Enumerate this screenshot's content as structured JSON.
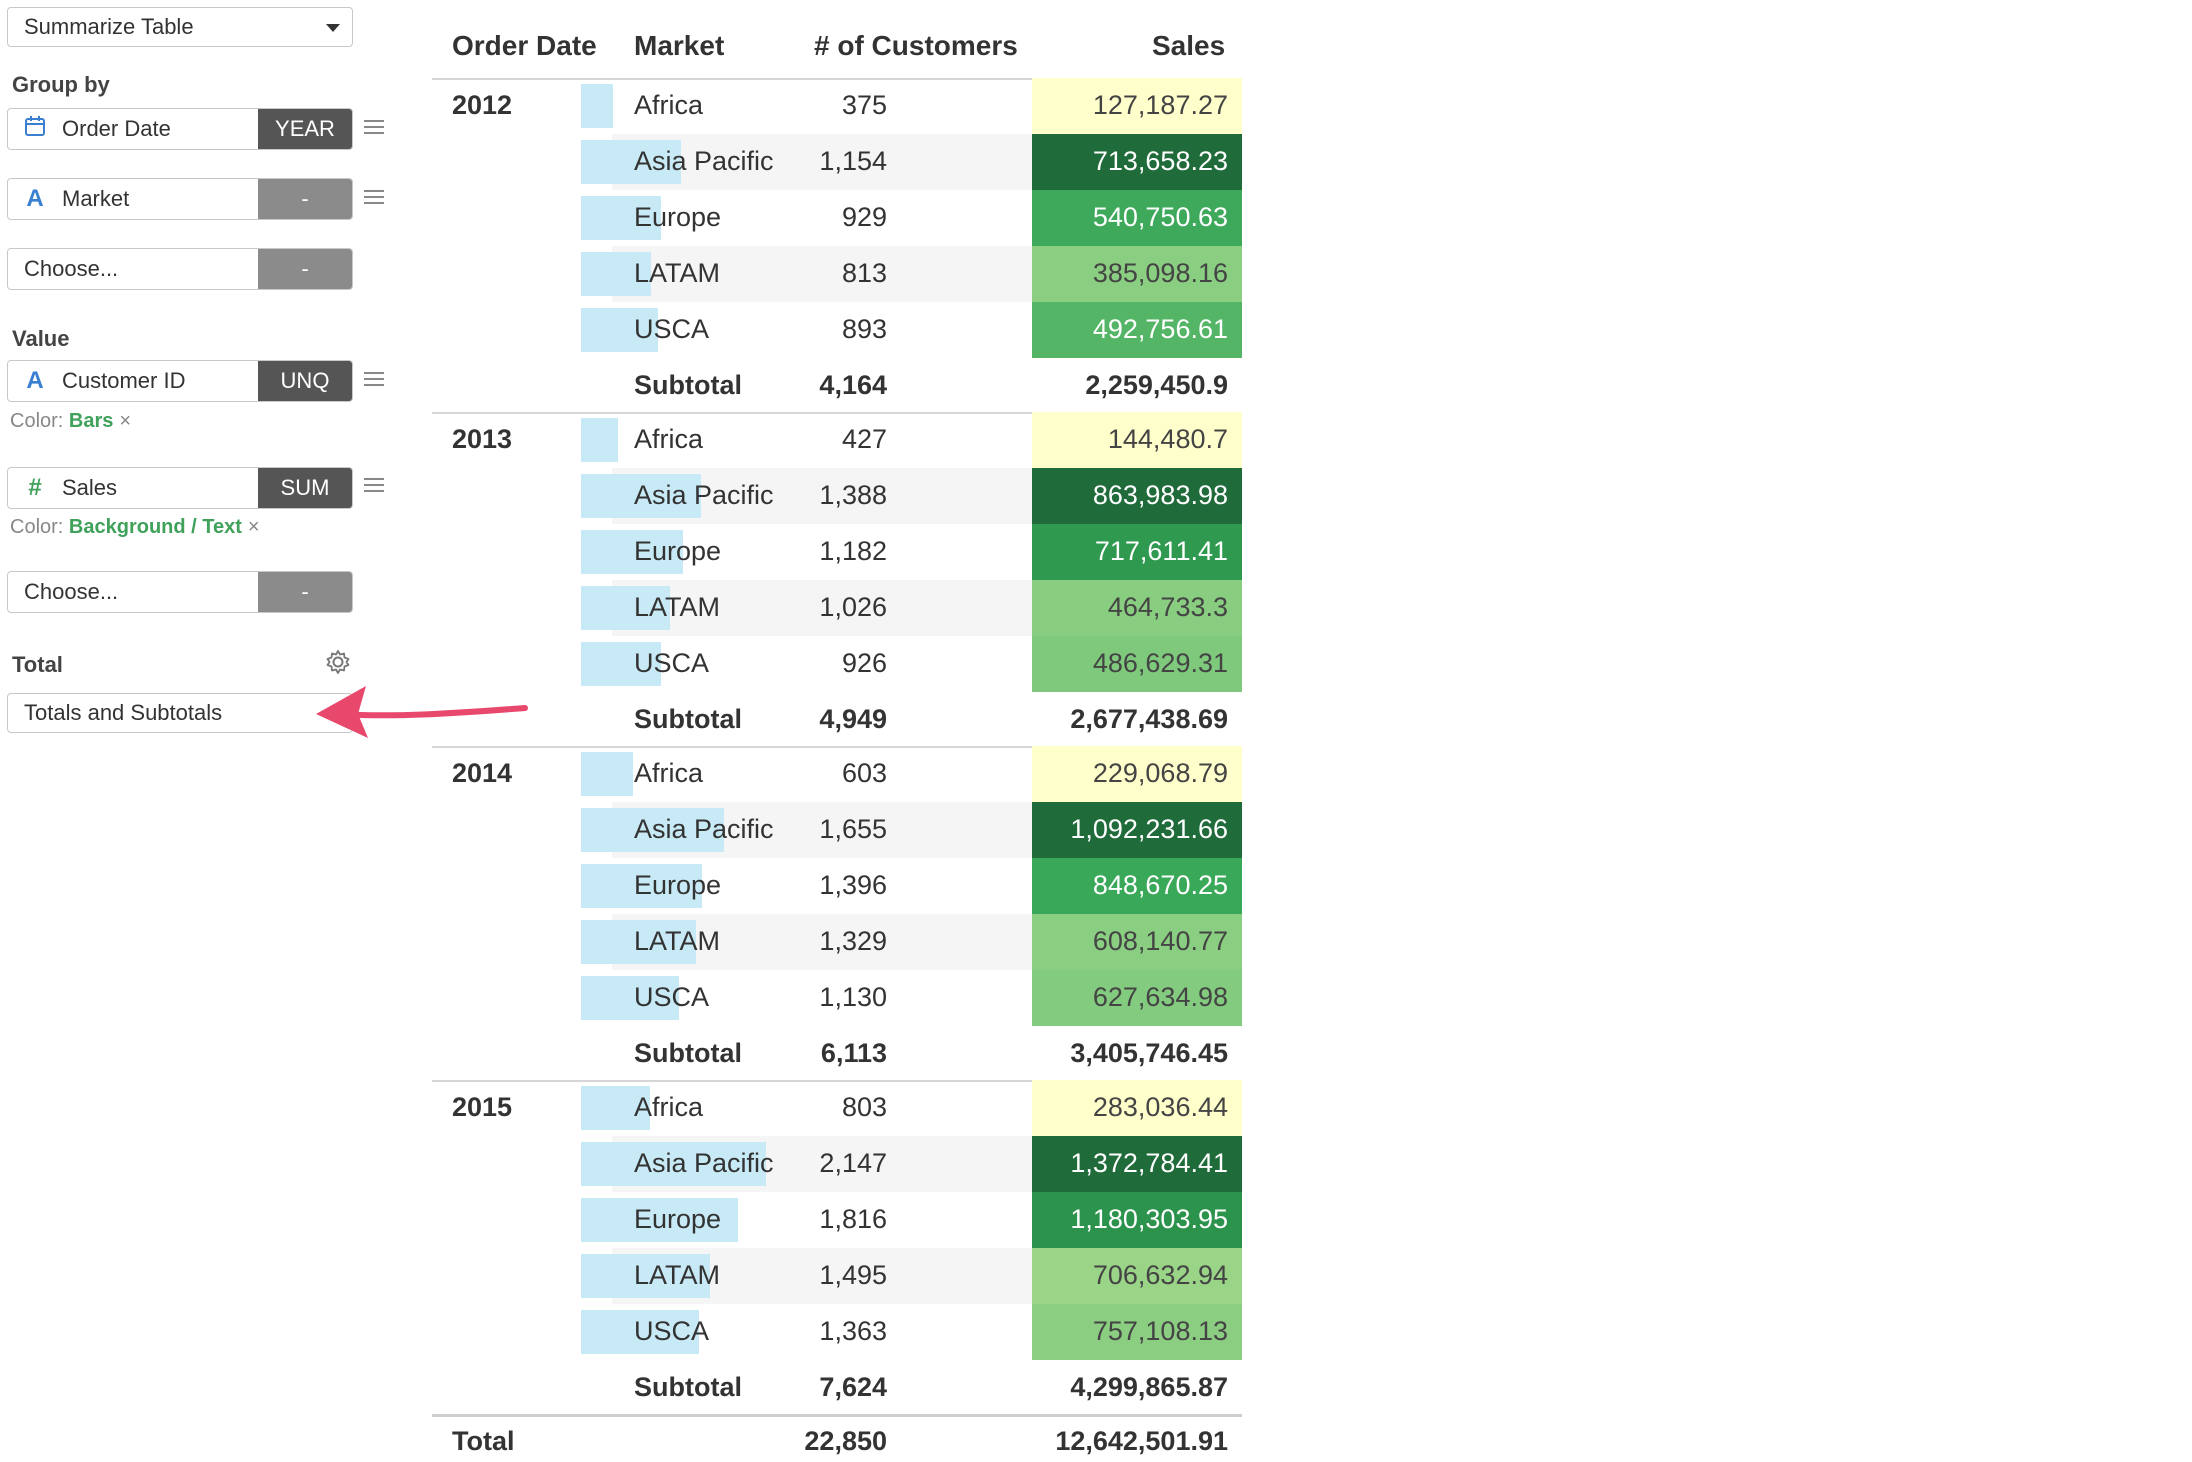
{
  "sidebar": {
    "mode_select": "Summarize Table",
    "group_by_label": "Group by",
    "group_fields": [
      {
        "name": "Order Date",
        "type_icon": "calendar-icon",
        "agg": "YEAR"
      },
      {
        "name": "Market",
        "type_icon": "A",
        "agg": "-"
      },
      {
        "name": "Choose...",
        "agg": "-"
      }
    ],
    "value_label": "Value",
    "value_fields": [
      {
        "name": "Customer ID",
        "type_icon": "A",
        "agg": "UNQ",
        "color_label": "Color:",
        "color_value": "Bars",
        "remove": "×"
      },
      {
        "name": "Sales",
        "type_icon": "#",
        "agg": "SUM",
        "color_label": "Color:",
        "color_value": "Background / Text",
        "remove": "×"
      },
      {
        "name": "Choose...",
        "agg": "-"
      }
    ],
    "total_label": "Total",
    "total_select": "Totals and Subtotals"
  },
  "table": {
    "headers": [
      "Order Date",
      "Market",
      "# of Customers",
      "Sales"
    ],
    "groups": [
      {
        "year": "2012",
        "rows": [
          {
            "market": "Africa",
            "customers": "375",
            "cust_n": 375,
            "sales": "127,187.27",
            "sales_n": 127187.27
          },
          {
            "market": "Asia Pacific",
            "customers": "1,154",
            "cust_n": 1154,
            "sales": "713,658.23",
            "sales_n": 713658.23
          },
          {
            "market": "Europe",
            "customers": "929",
            "cust_n": 929,
            "sales": "540,750.63",
            "sales_n": 540750.63
          },
          {
            "market": "LATAM",
            "customers": "813",
            "cust_n": 813,
            "sales": "385,098.16",
            "sales_n": 385098.16
          },
          {
            "market": "USCA",
            "customers": "893",
            "cust_n": 893,
            "sales": "492,756.61",
            "sales_n": 492756.61
          }
        ],
        "subtotal_label": "Subtotal",
        "subtotal_customers": "4,164",
        "subtotal_sales": "2,259,450.9"
      },
      {
        "year": "2013",
        "rows": [
          {
            "market": "Africa",
            "customers": "427",
            "cust_n": 427,
            "sales": "144,480.7",
            "sales_n": 144480.7
          },
          {
            "market": "Asia Pacific",
            "customers": "1,388",
            "cust_n": 1388,
            "sales": "863,983.98",
            "sales_n": 863983.98
          },
          {
            "market": "Europe",
            "customers": "1,182",
            "cust_n": 1182,
            "sales": "717,611.41",
            "sales_n": 717611.41
          },
          {
            "market": "LATAM",
            "customers": "1,026",
            "cust_n": 1026,
            "sales": "464,733.3",
            "sales_n": 464733.3
          },
          {
            "market": "USCA",
            "customers": "926",
            "cust_n": 926,
            "sales": "486,629.31",
            "sales_n": 486629.31
          }
        ],
        "subtotal_label": "Subtotal",
        "subtotal_customers": "4,949",
        "subtotal_sales": "2,677,438.69"
      },
      {
        "year": "2014",
        "rows": [
          {
            "market": "Africa",
            "customers": "603",
            "cust_n": 603,
            "sales": "229,068.79",
            "sales_n": 229068.79
          },
          {
            "market": "Asia Pacific",
            "customers": "1,655",
            "cust_n": 1655,
            "sales": "1,092,231.66",
            "sales_n": 1092231.66
          },
          {
            "market": "Europe",
            "customers": "1,396",
            "cust_n": 1396,
            "sales": "848,670.25",
            "sales_n": 848670.25
          },
          {
            "market": "LATAM",
            "customers": "1,329",
            "cust_n": 1329,
            "sales": "608,140.77",
            "sales_n": 608140.77
          },
          {
            "market": "USCA",
            "customers": "1,130",
            "cust_n": 1130,
            "sales": "627,634.98",
            "sales_n": 627634.98
          }
        ],
        "subtotal_label": "Subtotal",
        "subtotal_customers": "6,113",
        "subtotal_sales": "3,405,746.45"
      },
      {
        "year": "2015",
        "rows": [
          {
            "market": "Africa",
            "customers": "803",
            "cust_n": 803,
            "sales": "283,036.44",
            "sales_n": 283036.44
          },
          {
            "market": "Asia Pacific",
            "customers": "2,147",
            "cust_n": 2147,
            "sales": "1,372,784.41",
            "sales_n": 1372784.41
          },
          {
            "market": "Europe",
            "customers": "1,816",
            "cust_n": 1816,
            "sales": "1,180,303.95",
            "sales_n": 1180303.95
          },
          {
            "market": "LATAM",
            "customers": "1,495",
            "cust_n": 1495,
            "sales": "706,632.94",
            "sales_n": 706632.94
          },
          {
            "market": "USCA",
            "customers": "1,363",
            "cust_n": 1363,
            "sales": "757,108.13",
            "sales_n": 757108.13
          }
        ],
        "subtotal_label": "Subtotal",
        "subtotal_customers": "7,624",
        "subtotal_sales": "4,299,865.87"
      }
    ],
    "total_label": "Total",
    "total_customers": "22,850",
    "total_sales": "12,642,501.91",
    "colors": {
      "bar": "#c8eaf6",
      "stripe": "#f5f5f5",
      "scale": [
        "#ffffcc",
        "#c2e699",
        "#78c679",
        "#31a354",
        "#1f6b3a"
      ]
    }
  }
}
